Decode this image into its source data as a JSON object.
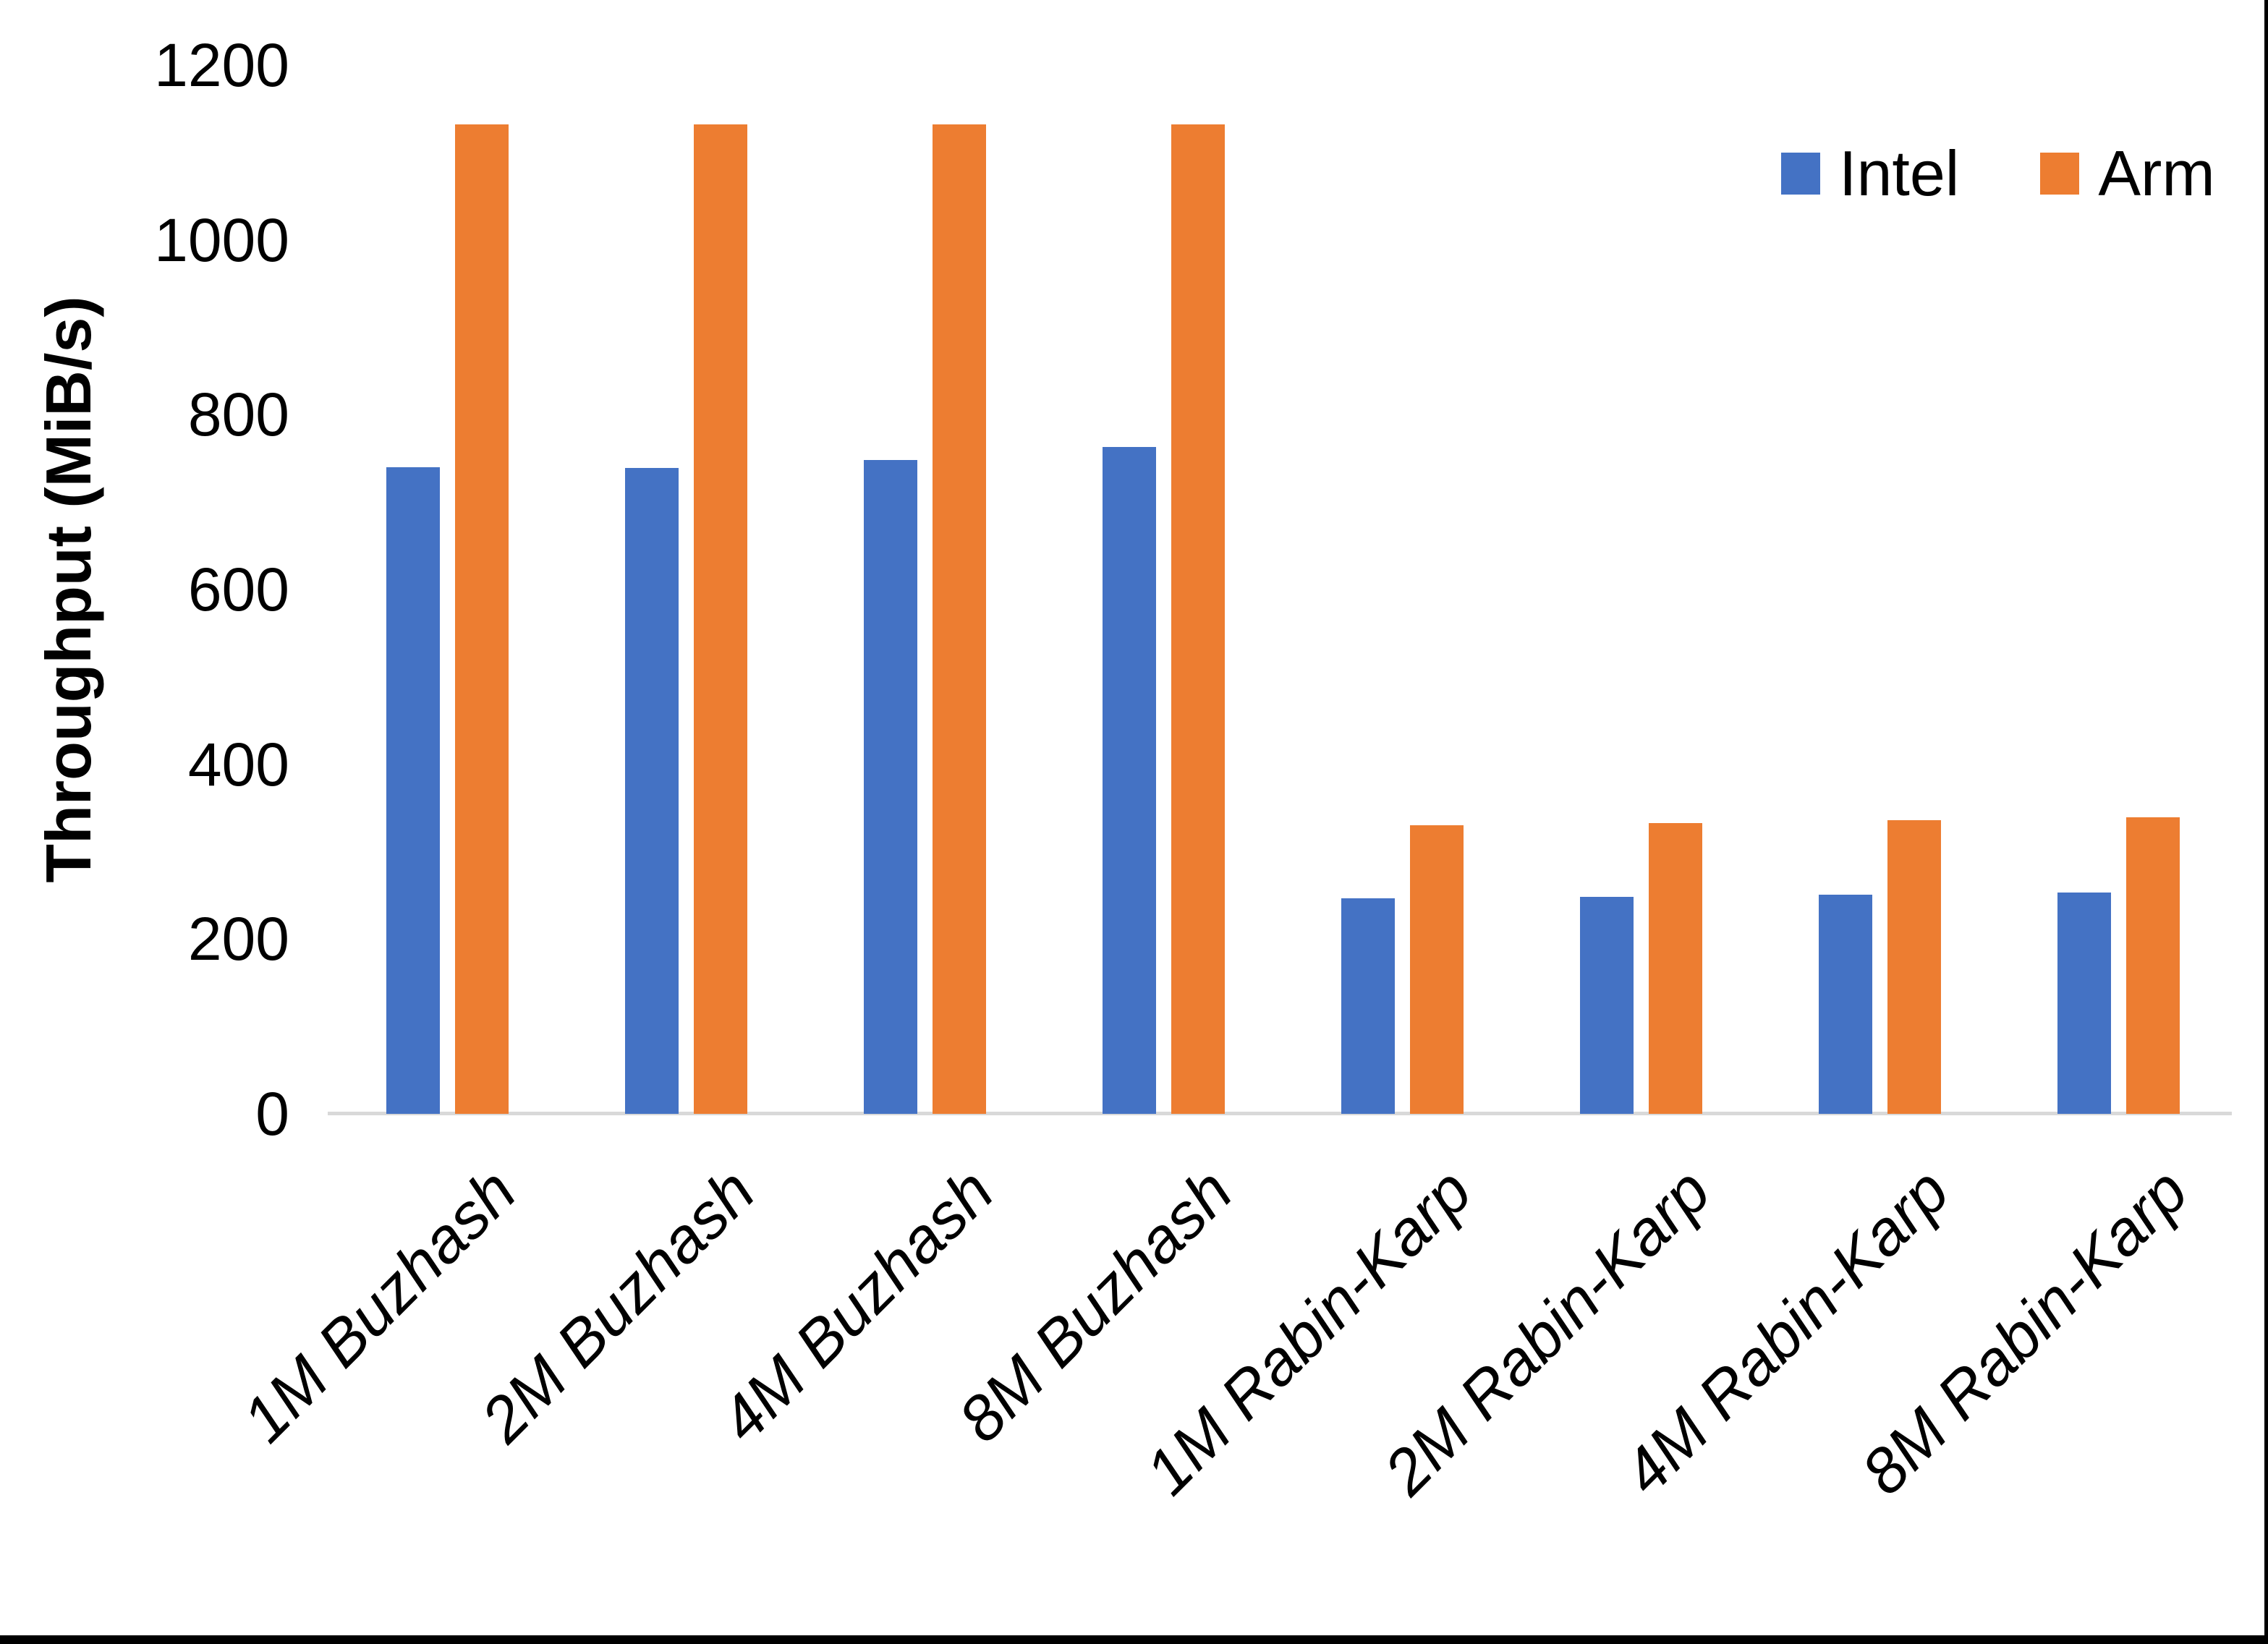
{
  "chart_data": {
    "type": "bar",
    "title": "",
    "xlabel": "",
    "ylabel": "Throughput (MiB/s)",
    "ylim": [
      0,
      1200
    ],
    "yticks": [
      0,
      200,
      400,
      600,
      800,
      1000,
      1200
    ],
    "grid": false,
    "legend_position": "top-right",
    "axis_line_color": "#d9d9d9",
    "categories": [
      "1M Buzhash",
      "2M Buzhash",
      "4M Buzhash",
      "8M Buzhash",
      "1M Rabin-Karp",
      "2M Rabin-Karp",
      "4M Rabin-Karp",
      "8M Rabin-Karp"
    ],
    "series": [
      {
        "name": "Intel",
        "color": "#4472c4",
        "values": [
          740,
          739,
          748,
          763,
          247,
          248,
          251,
          253
        ]
      },
      {
        "name": "Arm",
        "color": "#ed7d31",
        "values": [
          1132,
          1132,
          1132,
          1132,
          330,
          333,
          336,
          339
        ]
      }
    ]
  }
}
